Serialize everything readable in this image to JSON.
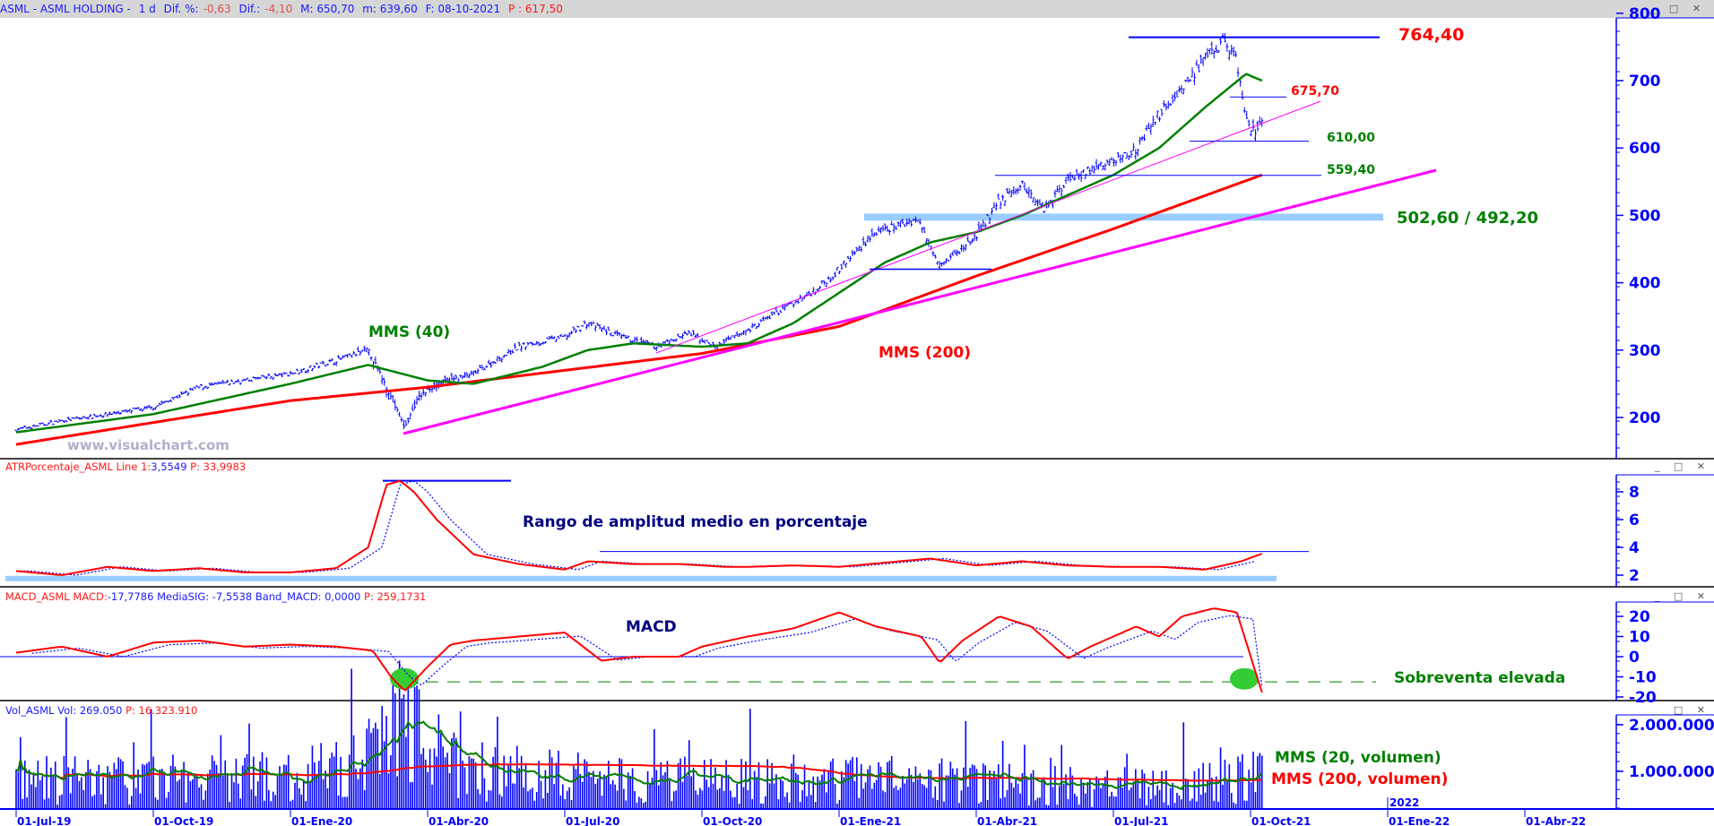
{
  "header": {
    "symbol": "ASML - ASML HOLDING -",
    "period": "1 d",
    "dif_pct_label": "Dif. %:",
    "dif_pct": "-0,63",
    "dif_label": "Dif.:",
    "dif": "-4,10",
    "max": "M: 650,70",
    "min": "m: 639,60",
    "date": "F: 08-10-2021",
    "price": "P : 617,50"
  },
  "window_buttons": "_ □ ✕",
  "panes": {
    "atr": {
      "name": "ATRPorcentaje_ASML",
      "line_label": "Line 1:",
      "line_value": "3,5549",
      "p": "P: 33,9983"
    },
    "macd": {
      "name": "MACD_ASML",
      "macd_label": "MACD:",
      "macd_value": "-17,7786",
      "sig": "MediaSIG: -7,5538",
      "band": "Band_MACD: 0,0000",
      "p": "P: 259,1731"
    },
    "vol": {
      "name": "Vol_ASML",
      "vol": "Vol: 269.050",
      "p": "P: 16.323.910"
    }
  },
  "annotations": {
    "high": "764,40",
    "level_675": "675,70",
    "level_610": "610,00",
    "level_559": "559,40",
    "band": "502,60 / 492,20",
    "mms40": "MMS (40)",
    "mms200": "MMS (200)",
    "atr_text": "Rango de amplitud medio en porcentaje",
    "macd_text": "MACD",
    "oversold": "Sobreventa elevada",
    "vol_mms20": "MMS (20, volumen)",
    "vol_mms200": "MMS (200, volumen)",
    "watermark": "www.visualchart.com"
  },
  "colors": {
    "price": "#0000ff",
    "mms40": "#008000",
    "mms200": "#ff0000",
    "trend": "#ff00ff",
    "band": "#99ccff",
    "axis": "#0000ff"
  },
  "chart_data": {
    "type": "ohlc",
    "x_unit": "months since 01-Jul-19",
    "x_ticks": [
      "01-Jul-19",
      "01-Oct-19",
      "01-Ene-20",
      "01-Abr-20",
      "01-Jul-20",
      "01-Oct-20",
      "01-Ene-21",
      "01-Abr-21",
      "01-Jul-21",
      "01-Oct-21",
      "01-Ene-22",
      "01-Abr-22"
    ],
    "year_marker": "2022",
    "price_axis": {
      "ticks": [
        "200",
        "300",
        "400",
        "500",
        "600",
        "700",
        "800"
      ],
      "range": [
        140,
        800
      ]
    },
    "price_close": [
      [
        0,
        182
      ],
      [
        1,
        195
      ],
      [
        2,
        205
      ],
      [
        3,
        215
      ],
      [
        3.5,
        230
      ],
      [
        4,
        245
      ],
      [
        5,
        255
      ],
      [
        6,
        265
      ],
      [
        6.5,
        275
      ],
      [
        7,
        285
      ],
      [
        7.7,
        300
      ],
      [
        8.1,
        245
      ],
      [
        8.5,
        185
      ],
      [
        8.8,
        230
      ],
      [
        9.2,
        250
      ],
      [
        10,
        265
      ],
      [
        11,
        305
      ],
      [
        12,
        320
      ],
      [
        12.5,
        340
      ],
      [
        13.2,
        320
      ],
      [
        14,
        305
      ],
      [
        14.7,
        325
      ],
      [
        15.3,
        305
      ],
      [
        16,
        330
      ],
      [
        17,
        370
      ],
      [
        17.5,
        390
      ],
      [
        18,
        420
      ],
      [
        18.7,
        470
      ],
      [
        19.7,
        495
      ],
      [
        20.2,
        430
      ],
      [
        20.5,
        440
      ],
      [
        21,
        470
      ],
      [
        21.5,
        520
      ],
      [
        22,
        545
      ],
      [
        22.5,
        510
      ],
      [
        23,
        555
      ],
      [
        24,
        580
      ],
      [
        24.5,
        600
      ],
      [
        25,
        650
      ],
      [
        25.5,
        690
      ],
      [
        26,
        730
      ],
      [
        26.4,
        760
      ],
      [
        26.7,
        730
      ],
      [
        26.9,
        640
      ],
      [
        27.1,
        620
      ],
      [
        27.25,
        645
      ]
    ],
    "mms40": [
      [
        0,
        178
      ],
      [
        3,
        205
      ],
      [
        6,
        250
      ],
      [
        7.7,
        278
      ],
      [
        9,
        255
      ],
      [
        10,
        250
      ],
      [
        11.5,
        275
      ],
      [
        12.5,
        300
      ],
      [
        13.5,
        310
      ],
      [
        15,
        305
      ],
      [
        16,
        310
      ],
      [
        17,
        340
      ],
      [
        18,
        385
      ],
      [
        19,
        430
      ],
      [
        20,
        460
      ],
      [
        21,
        475
      ],
      [
        22,
        500
      ],
      [
        23,
        530
      ],
      [
        24,
        560
      ],
      [
        25,
        600
      ],
      [
        26,
        660
      ],
      [
        26.9,
        710
      ],
      [
        27.25,
        700
      ]
    ],
    "mms200": [
      [
        0,
        160
      ],
      [
        6,
        225
      ],
      [
        9,
        245
      ],
      [
        12,
        270
      ],
      [
        15,
        295
      ],
      [
        18,
        335
      ],
      [
        21,
        410
      ],
      [
        24,
        480
      ],
      [
        27.25,
        560
      ]
    ],
    "levels": [
      764.4,
      675.7,
      610.0,
      559.4,
      420.0
    ],
    "band": [
      492.2,
      502.6
    ],
    "atr_axis": {
      "ticks": [
        "2",
        "4",
        "6",
        "8"
      ]
    },
    "atr": [
      [
        0,
        2.3
      ],
      [
        1,
        2.0
      ],
      [
        2,
        2.6
      ],
      [
        3,
        2.3
      ],
      [
        4,
        2.5
      ],
      [
        5,
        2.2
      ],
      [
        6,
        2.2
      ],
      [
        7,
        2.5
      ],
      [
        7.7,
        4
      ],
      [
        8.1,
        8.5
      ],
      [
        8.4,
        8.8
      ],
      [
        8.7,
        8
      ],
      [
        9.2,
        6
      ],
      [
        10,
        3.5
      ],
      [
        11,
        2.8
      ],
      [
        12,
        2.4
      ],
      [
        12.5,
        3.0
      ],
      [
        13.5,
        2.8
      ],
      [
        14.5,
        2.8
      ],
      [
        15.5,
        2.6
      ],
      [
        16,
        2.6
      ],
      [
        17,
        2.7
      ],
      [
        18,
        2.6
      ],
      [
        19,
        2.9
      ],
      [
        20,
        3.2
      ],
      [
        21,
        2.7
      ],
      [
        22,
        3.0
      ],
      [
        23,
        2.7
      ],
      [
        24,
        2.6
      ],
      [
        25,
        2.6
      ],
      [
        26,
        2.4
      ],
      [
        26.8,
        3
      ],
      [
        27.25,
        3.55
      ]
    ],
    "macd_axis": {
      "ticks": [
        "-20",
        "-10",
        "0",
        "10",
        "20"
      ]
    },
    "macd": [
      [
        0,
        2
      ],
      [
        1,
        5
      ],
      [
        2,
        0
      ],
      [
        3,
        7
      ],
      [
        4,
        8
      ],
      [
        5,
        5
      ],
      [
        6,
        6
      ],
      [
        7,
        5
      ],
      [
        7.8,
        3
      ],
      [
        8.2,
        -10
      ],
      [
        8.5,
        -17
      ],
      [
        9,
        -5
      ],
      [
        9.5,
        6
      ],
      [
        10,
        8
      ],
      [
        11,
        10
      ],
      [
        12,
        12
      ],
      [
        12.8,
        -2
      ],
      [
        13.5,
        0
      ],
      [
        14.5,
        0
      ],
      [
        15,
        5
      ],
      [
        16,
        10
      ],
      [
        17,
        14
      ],
      [
        17.5,
        18
      ],
      [
        18,
        22
      ],
      [
        18.8,
        15
      ],
      [
        19.8,
        10
      ],
      [
        20.2,
        -3
      ],
      [
        20.7,
        8
      ],
      [
        21.5,
        20
      ],
      [
        22.2,
        15
      ],
      [
        23,
        -1
      ],
      [
        23.5,
        5
      ],
      [
        24.5,
        15
      ],
      [
        25,
        10
      ],
      [
        25.5,
        20
      ],
      [
        26.2,
        24
      ],
      [
        26.7,
        22
      ],
      [
        27.25,
        -17.8
      ]
    ],
    "vol_axis": {
      "ticks": [
        "1.000.000",
        "2.000.000"
      ]
    },
    "volume_level": [
      [
        0,
        800000
      ],
      [
        6,
        850000
      ],
      [
        7.5,
        1200000
      ],
      [
        8.3,
        2200000
      ],
      [
        9,
        1500000
      ],
      [
        10,
        1000000
      ],
      [
        12,
        900000
      ],
      [
        15,
        800000
      ],
      [
        18,
        850000
      ],
      [
        21,
        750000
      ],
      [
        24,
        650000
      ],
      [
        26.5,
        800000
      ],
      [
        27.25,
        900000
      ]
    ]
  }
}
